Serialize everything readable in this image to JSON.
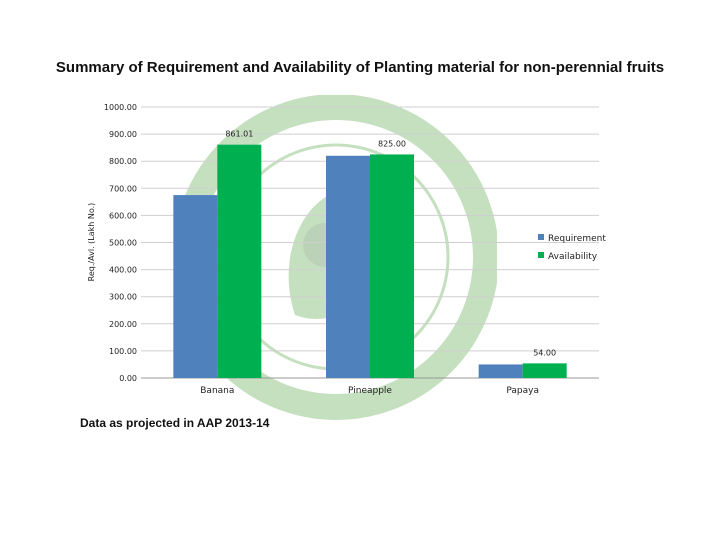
{
  "slide": {
    "title": "Summary of Requirement and Availability of Planting material for non-perennial fruits",
    "footnote": "Data as projected in AAP 2013-14"
  },
  "colors": {
    "requirement": "#4f81bd",
    "availability": "#00b050",
    "grid": "#cfcfcf",
    "watermark": "#5aa84a"
  },
  "chart_data": {
    "type": "bar",
    "title": "",
    "xlabel": "",
    "ylabel": "Req./Avl. (Lakh No.)",
    "ylim": [
      0,
      1000
    ],
    "yticks": [
      "0.00",
      "100.00",
      "200.00",
      "300.00",
      "400.00",
      "500.00",
      "600.00",
      "700.00",
      "800.00",
      "900.00",
      "1000.00"
    ],
    "categories": [
      "Banana",
      "Pineapple",
      "Papaya"
    ],
    "series": [
      {
        "name": "Requirement",
        "values": [
          675,
          820,
          50
        ],
        "labels": [
          "",
          "",
          ""
        ]
      },
      {
        "name": "Availability",
        "values": [
          861.01,
          825,
          54
        ],
        "labels": [
          "861.01",
          "825.00",
          "54.00"
        ]
      }
    ],
    "grid": true,
    "legend": "right"
  }
}
